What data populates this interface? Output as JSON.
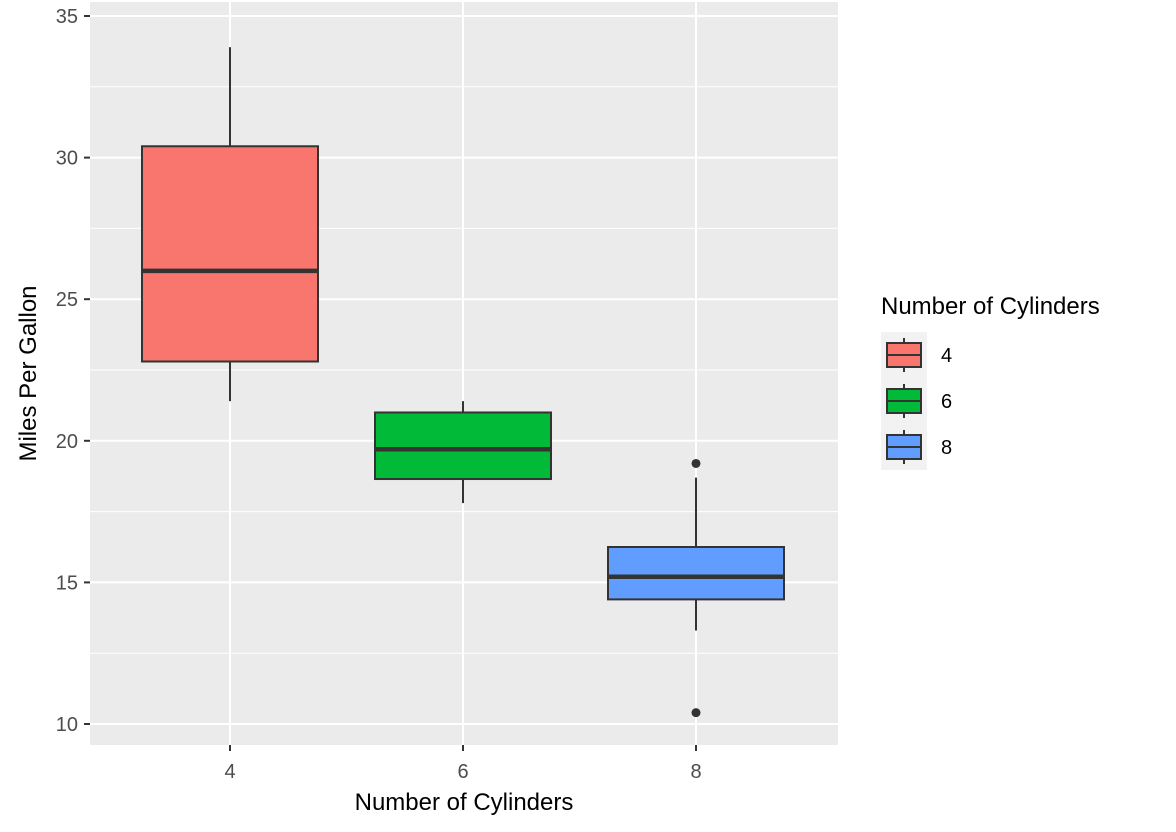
{
  "chart_data": {
    "type": "boxplot",
    "title": "",
    "xlabel": "Number of Cylinders",
    "ylabel": "Miles Per Gallon",
    "ylim": [
      9.4,
      35
    ],
    "yticks": [
      10,
      15,
      20,
      25,
      30,
      35
    ],
    "categories": [
      "4",
      "6",
      "8"
    ],
    "boxes": [
      {
        "category": "4",
        "color": "#F8766D",
        "lower_whisker": 21.4,
        "q1": 22.8,
        "median": 26.0,
        "q3": 30.4,
        "upper_whisker": 33.9,
        "outliers": []
      },
      {
        "category": "6",
        "color": "#00BA38",
        "lower_whisker": 17.8,
        "q1": 18.65,
        "median": 19.7,
        "q3": 21.0,
        "upper_whisker": 21.4,
        "outliers": []
      },
      {
        "category": "8",
        "color": "#619CFF",
        "lower_whisker": 13.3,
        "q1": 14.4,
        "median": 15.2,
        "q3": 16.25,
        "upper_whisker": 18.7,
        "outliers": [
          19.2,
          10.4
        ]
      }
    ],
    "grid": true,
    "background": "#EBEBEB",
    "legend": {
      "title": "Number of Cylinders",
      "placement": "right",
      "items": [
        "4",
        "6",
        "8"
      ]
    }
  }
}
